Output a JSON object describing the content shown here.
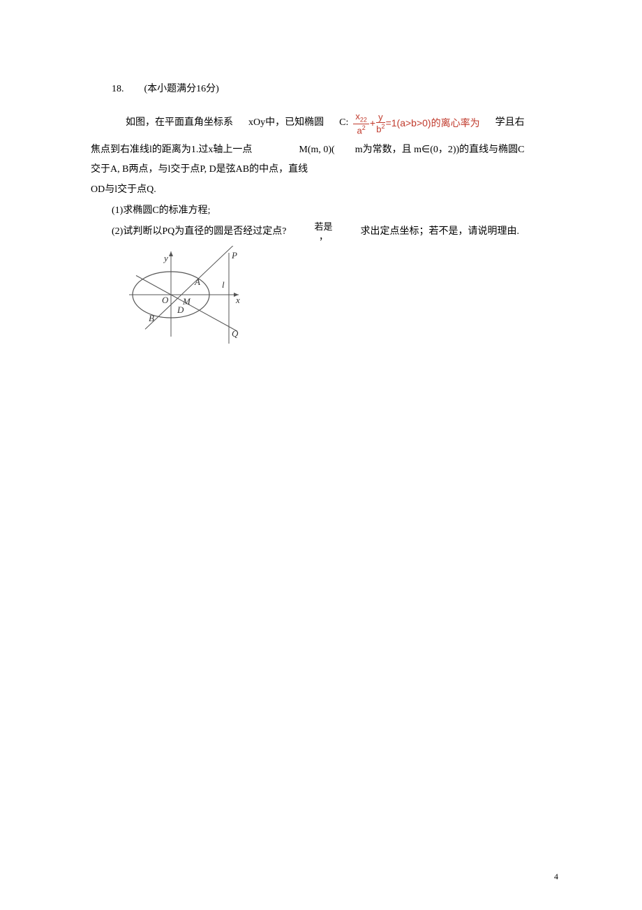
{
  "header": {
    "number": "18.",
    "text": "(本小题满分16分)"
  },
  "para1": {
    "t1": "如图，在平面直角坐标系",
    "t2": "xOy中，已知椭圆",
    "t3": "C:",
    "eq_x_num": "x",
    "eq_x_sup": "2",
    "eq_x_sup2": "2",
    "eq_a": "a",
    "eq_a_sup": "2",
    "eq_plus": "+",
    "eq_y_num": "y",
    "eq_b": "b",
    "eq_b_sup": "2",
    "eq_tail": "=1(a>b>0)的离心率为",
    "t4": "学且右"
  },
  "para2": {
    "t1": "焦点到右准线l的距离为1.过x轴上一点",
    "t2": "M(m, 0)(",
    "t3": "m为常数，且 m∈(0，2))的直线与椭圆C"
  },
  "para3": {
    "t1": "交于A, B两点，与l交于点P, D是弦AB的中点，直线"
  },
  "para4": {
    "t1": "OD与l交于点Q."
  },
  "q1": "(1)求椭圆C的标准方程;",
  "q2": {
    "t1": "(2)试判断以PQ为直径的圆是否经过定点?",
    "t2a": "若是",
    "t2b": "，",
    "t3": "求出定点坐标；若不是，请说明理由."
  },
  "diagram": {
    "width": 180,
    "height": 150,
    "stroke": "#555555",
    "fill": "#ffffff",
    "label_font": "italic 13px Times",
    "labels": {
      "y": "y",
      "x": "x",
      "O": "O",
      "M": "M",
      "A": "A",
      "B": "B",
      "D": "D",
      "P": "P",
      "Q": "Q",
      "l": "l"
    }
  },
  "pageNumber": "4"
}
